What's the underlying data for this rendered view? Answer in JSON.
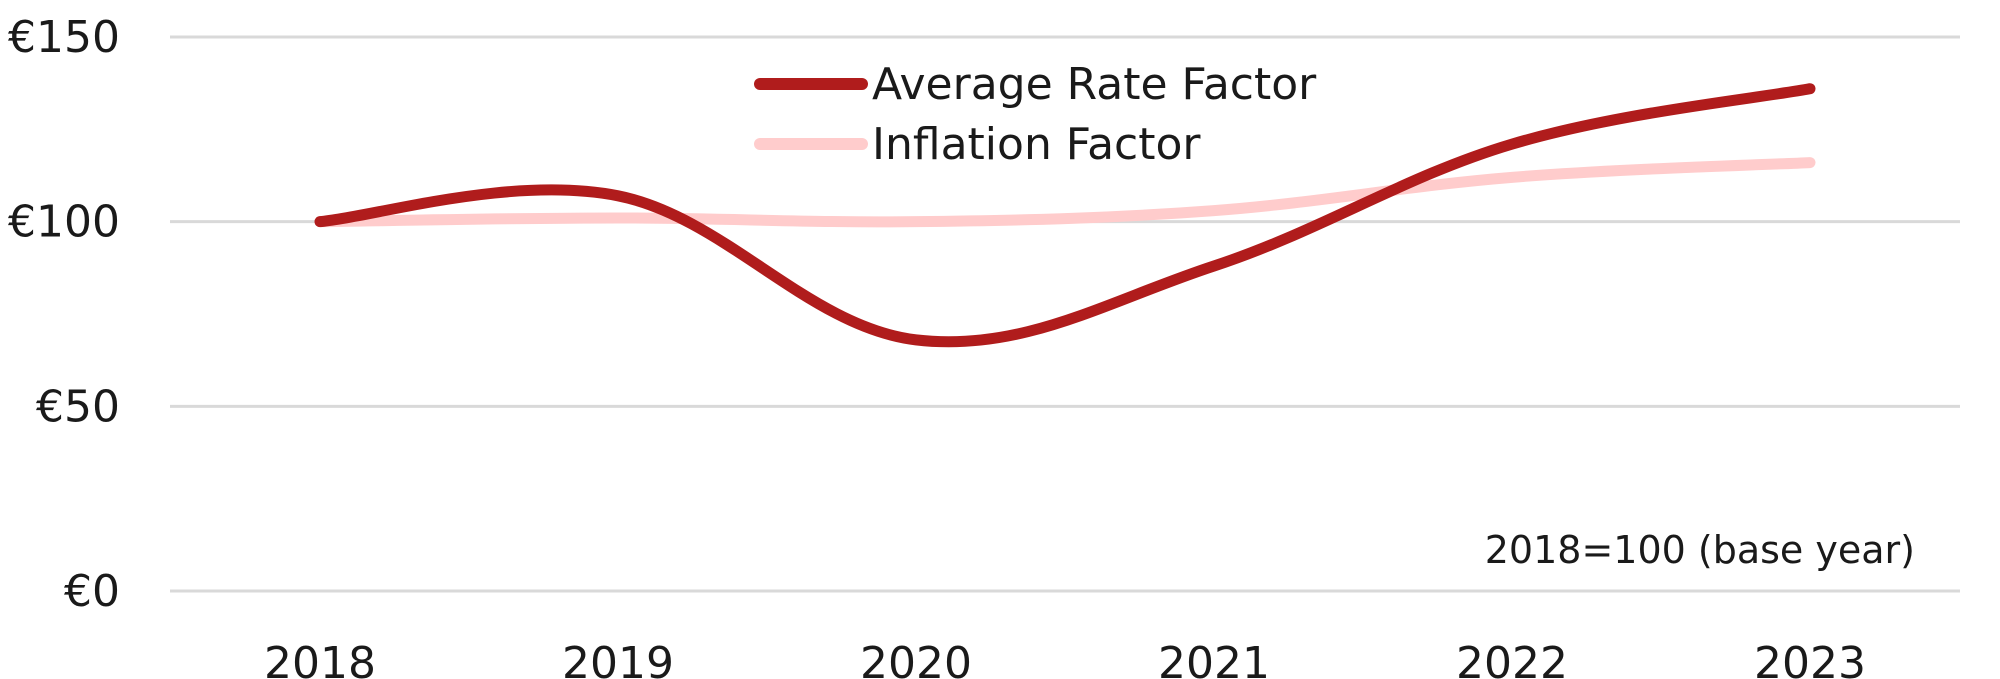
{
  "chart_data": {
    "type": "line",
    "x": [
      "2018",
      "2019",
      "2020",
      "2021",
      "2022",
      "2023"
    ],
    "ylim": [
      0,
      150
    ],
    "yticks": [
      "€0",
      "€50",
      "€100",
      "€150"
    ],
    "ytick_values": [
      0,
      50,
      100,
      150
    ],
    "grid": true,
    "legend_position": "top-center",
    "annotation": "2018=100 (base year)",
    "series": [
      {
        "name": "Average Rate Factor",
        "color": "#b01c1c",
        "values": [
          100,
          107,
          68,
          88,
          121,
          136
        ]
      },
      {
        "name": "Inflation Factor",
        "color": "#ffcccc",
        "values": [
          100,
          101,
          100,
          103,
          112,
          116
        ]
      }
    ]
  }
}
